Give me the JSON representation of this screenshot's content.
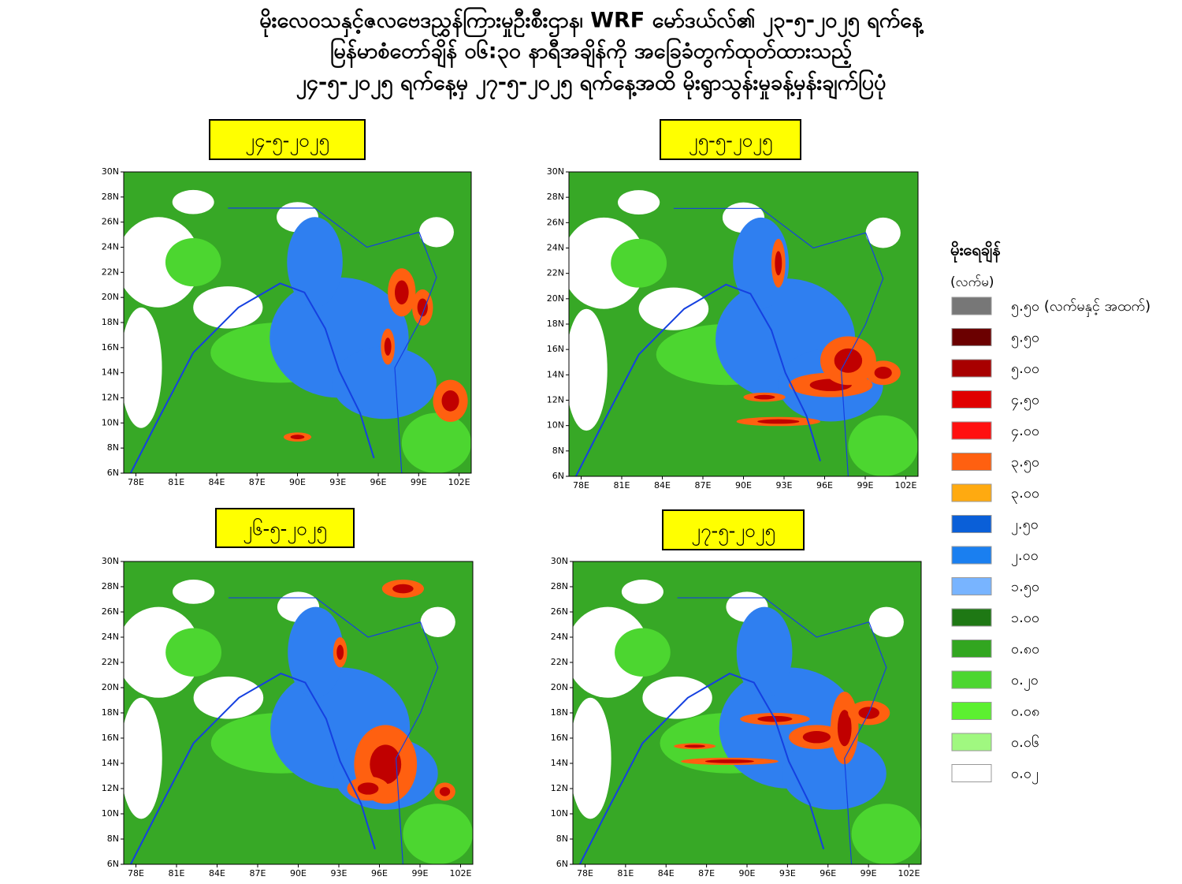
{
  "header": {
    "title_lines": [
      "မိုးလေဝသနှင့်ဇလဗေဒညွှန်ကြားမှုဦးစီးဌာန၊ WRF မော်ဒယ်လ်၏ ၂၃-၅-၂၀၂၅ ရက်နေ့",
      "မြန်မာစံတော်ချိန် ၀၆:၃၀ နာရီအချိန်ကို အခြေခံတွက်ထုတ်ထားသည့်",
      "၂၄-၅-၂၀၂၅ ရက်နေ့မှ ၂၇-၅-၂၀၂၅ ရက်နေ့အထိ မိုးရွာသွန်းမှုခန့်မှန်းချက်ပြပုံ"
    ]
  },
  "panels": [
    {
      "label": "၂၄-၅-၂၀၂၅"
    },
    {
      "label": "၂၅-၅-၂၀၂၅"
    },
    {
      "label": "၂၆-၅-၂၀၂၅"
    },
    {
      "label": "၂၇-၅-၂၀၂၅"
    }
  ],
  "axes": {
    "lat_labels": [
      "30N",
      "28N",
      "26N",
      "24N",
      "22N",
      "20N",
      "18N",
      "16N",
      "14N",
      "12N",
      "10N",
      "8N",
      "6N"
    ],
    "lon_labels": [
      "78E",
      "81E",
      "84E",
      "87E",
      "90E",
      "93E",
      "96E",
      "99E",
      "102E"
    ]
  },
  "legend": {
    "title": "မိုးရေချိန်",
    "unit": "(လက်မ)",
    "items": [
      {
        "label": "၅.၅၀ (လက်မနှင့် အထက်)",
        "color": "#777777"
      },
      {
        "label": "၅.၅၀",
        "color": "#6b0000"
      },
      {
        "label": "၅.၀၀",
        "color": "#a80000"
      },
      {
        "label": "၄.၅၀",
        "color": "#e00000"
      },
      {
        "label": "၄.၀၀",
        "color": "#ff1010"
      },
      {
        "label": "၃.၅၀",
        "color": "#ff6010"
      },
      {
        "label": "၃.၀၀",
        "color": "#ffaa10"
      },
      {
        "label": "၂.၅၀",
        "color": "#0a5fd8"
      },
      {
        "label": "၂.၀၀",
        "color": "#1a7ff0"
      },
      {
        "label": "၁.၅၀",
        "color": "#78b4ff"
      },
      {
        "label": "၁.၀၀",
        "color": "#1e7814"
      },
      {
        "label": "၀.၈၀",
        "color": "#32a620"
      },
      {
        "label": "၀.၂၀",
        "color": "#4cd630"
      },
      {
        "label": "၀.၀၈",
        "color": "#5cf030"
      },
      {
        "label": "၀.၀၆",
        "color": "#a0f880"
      },
      {
        "label": "၀.၀၂",
        "color": "#ffffff"
      }
    ]
  }
}
